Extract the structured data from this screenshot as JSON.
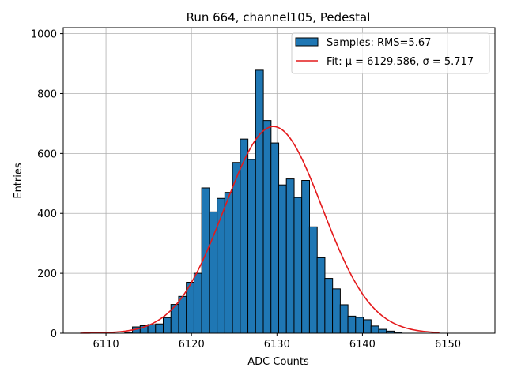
{
  "chart_data": {
    "type": "bar",
    "title": "Run 664, channel105, Pedestal",
    "xlabel": "ADC Counts",
    "ylabel": "Entries",
    "xlim": [
      6105,
      6155.5
    ],
    "ylim": [
      0,
      1020
    ],
    "xticks": [
      6110,
      6120,
      6130,
      6140,
      6150
    ],
    "yticks": [
      0,
      200,
      400,
      600,
      800,
      1000
    ],
    "grid": true,
    "legend_position": "top-right",
    "colors": {
      "bars": "#1f77b4",
      "bar_edge": "#000000",
      "fit": "#e41a1c",
      "grid": "#b0b0b0"
    },
    "series": [
      {
        "name": "Samples: RMS=5.67",
        "kind": "histogram",
        "bin_width": 0.91,
        "bins": [
          {
            "x": 6112.2,
            "y": 3
          },
          {
            "x": 6113.1,
            "y": 21
          },
          {
            "x": 6114.0,
            "y": 25
          },
          {
            "x": 6114.9,
            "y": 29
          },
          {
            "x": 6115.8,
            "y": 31
          },
          {
            "x": 6116.7,
            "y": 52
          },
          {
            "x": 6117.6,
            "y": 96
          },
          {
            "x": 6118.5,
            "y": 123
          },
          {
            "x": 6119.4,
            "y": 170
          },
          {
            "x": 6120.3,
            "y": 200
          },
          {
            "x": 6121.2,
            "y": 485
          },
          {
            "x": 6122.1,
            "y": 405
          },
          {
            "x": 6123.0,
            "y": 450
          },
          {
            "x": 6123.9,
            "y": 470
          },
          {
            "x": 6124.8,
            "y": 570
          },
          {
            "x": 6125.7,
            "y": 648
          },
          {
            "x": 6126.6,
            "y": 580
          },
          {
            "x": 6127.5,
            "y": 878
          },
          {
            "x": 6128.4,
            "y": 710
          },
          {
            "x": 6129.3,
            "y": 635
          },
          {
            "x": 6130.2,
            "y": 495
          },
          {
            "x": 6131.1,
            "y": 515
          },
          {
            "x": 6132.0,
            "y": 453
          },
          {
            "x": 6132.9,
            "y": 510
          },
          {
            "x": 6133.8,
            "y": 355
          },
          {
            "x": 6134.7,
            "y": 252
          },
          {
            "x": 6135.6,
            "y": 183
          },
          {
            "x": 6136.5,
            "y": 148
          },
          {
            "x": 6137.4,
            "y": 95
          },
          {
            "x": 6138.3,
            "y": 57
          },
          {
            "x": 6139.2,
            "y": 53
          },
          {
            "x": 6140.1,
            "y": 45
          },
          {
            "x": 6141.0,
            "y": 24
          },
          {
            "x": 6141.9,
            "y": 13
          },
          {
            "x": 6142.8,
            "y": 7
          },
          {
            "x": 6143.7,
            "y": 3
          }
        ]
      },
      {
        "name": "Fit: μ = 6129.586, σ = 5.717",
        "kind": "line",
        "amplitude": 690,
        "mu": 6129.586,
        "sigma": 5.717,
        "x_range": [
          6107,
          6149
        ]
      }
    ]
  }
}
